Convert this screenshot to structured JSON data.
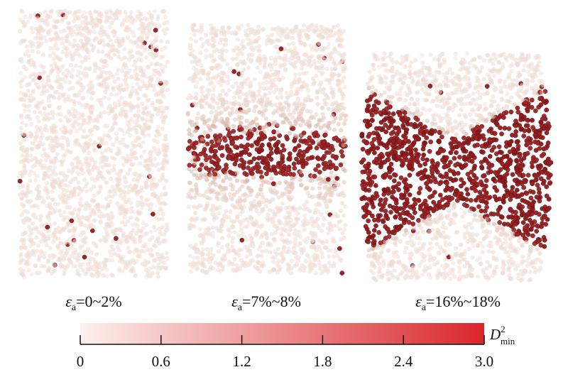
{
  "panels": [
    {
      "label": {
        "symbol": "ε",
        "subscript": "a",
        "text": "=0~2%"
      }
    },
    {
      "label": {
        "symbol": "ε",
        "subscript": "a",
        "text": "=7%~8%"
      }
    },
    {
      "label": {
        "symbol": "ε",
        "subscript": "a",
        "text": "=16%~18%"
      }
    }
  ],
  "colorbar": {
    "label": {
      "symbol": "D",
      "superscript": "2",
      "subscript": "min"
    },
    "lim": [
      0,
      3
    ],
    "ticks": [
      0,
      0.6,
      1.2,
      1.8,
      2.4,
      {
        "value": 3,
        "label": "3.0"
      }
    ],
    "colors": [
      "#fdf1ee",
      "#d9262b"
    ]
  }
}
